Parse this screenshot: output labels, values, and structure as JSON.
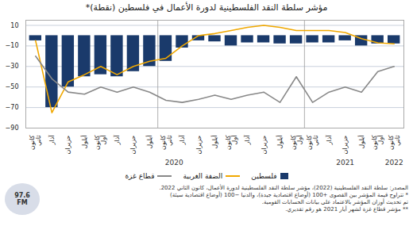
{
  "chart_data": {
    "type": "bar",
    "title": "مؤشر سلطة النقد الفلسطينية لدورة الأعمال في فلسطين (نقطة)*",
    "categories": [
      "كانون\nثاني",
      "آذار",
      "حزيران",
      "أيلول",
      "كانون\nأول",
      "آذار",
      "حزيران",
      "أيلول",
      "كانون\nثاني",
      "آذار",
      "حزيران",
      "أيلول",
      "كانون\nأول",
      "آذار",
      "حزيران",
      "أيلول",
      "كانون\nأول",
      "كانون\nثاني",
      "آذار",
      "حزيران",
      "أيلول",
      "كانون\nأول",
      "كانون\nثاني"
    ],
    "series": [
      {
        "name": "فلسطين",
        "type": "bar",
        "color": "#1a3a6b",
        "values": [
          -5,
          -70,
          -50,
          -40,
          -38,
          -40,
          -35,
          -30,
          -25,
          -12,
          -5,
          -6,
          -10,
          -7,
          -7,
          -8,
          -8,
          -7,
          -7,
          -5,
          -10,
          -8,
          -8
        ]
      },
      {
        "name": "الضفة الغربية",
        "type": "line",
        "color": "#f0a800",
        "values": [
          -5,
          -75,
          -45,
          -38,
          -30,
          -38,
          -30,
          -25,
          -22,
          -10,
          0,
          2,
          5,
          8,
          10,
          8,
          5,
          5,
          5,
          3,
          -3,
          -7,
          -8
        ]
      },
      {
        "name": "قطاع غزة",
        "type": "line",
        "color": "#888888",
        "values": [
          -20,
          -42,
          -55,
          -57,
          -50,
          -55,
          -50,
          -55,
          -63,
          -65,
          -62,
          -58,
          -62,
          -58,
          -55,
          -65,
          -40,
          -65,
          -55,
          -50,
          -55,
          -35,
          -30
        ]
      }
    ],
    "ylim": [
      -90,
      15
    ],
    "yticks": [
      -90,
      -70,
      -50,
      -30,
      -10,
      10
    ],
    "grid": true,
    "legend": "bottom",
    "annotations": [
      {
        "text": "2020",
        "x": 8.5
      },
      {
        "text": "2021",
        "x": 19.0
      },
      {
        "text": "2022",
        "x": 22.0
      }
    ],
    "vlines": [
      7.5,
      16.5
    ],
    "footer": [
      "المصدر: سلطة النقد الفلسطينية (2022)، مؤشر سلطة النقد الفلسطينية لدورة الأعمال، كانون الثاني 2022.",
      "* تتراوح قيمة المؤشر بين القصوى +100 (أوضاع اقتصادية جيدة)، والدنيا −100 (أوضاع اقتصادية سيئة)",
      "تم تحديث أوزان المؤشر بالاعتماد على بيانات الحسابات القومية.",
      "** مؤشر قطاع غزة لشهر أيار 2021 هو رقم تقديري."
    ],
    "logo_text": "97.6\nFM"
  }
}
